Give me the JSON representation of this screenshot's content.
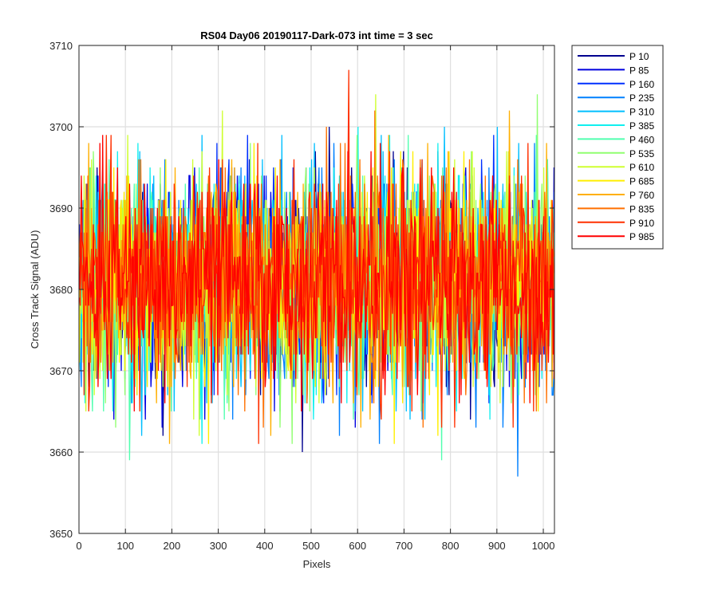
{
  "chart_data": {
    "type": "line",
    "title": "RS04 Day06 20190117-Dark-073 int time = 3 sec",
    "xlabel": "Pixels",
    "ylabel": "Cross Track Signal (ADU)",
    "xlim": [
      0,
      1024
    ],
    "ylim": [
      3650,
      3710
    ],
    "xticks": [
      0,
      100,
      200,
      300,
      400,
      500,
      600,
      700,
      800,
      900,
      1000
    ],
    "yticks": [
      3650,
      3660,
      3670,
      3680,
      3690,
      3700,
      3710
    ],
    "grid": true,
    "legend_placement": "outside-top-right",
    "x": {
      "start": 1,
      "end": 1024
    },
    "noise_model": {
      "mean": 3681,
      "sigma": 6.5,
      "min": 3651,
      "max": 3707
    },
    "series": [
      {
        "name": "P 10",
        "color": "#00008f"
      },
      {
        "name": "P 85",
        "color": "#0000df"
      },
      {
        "name": "P 160",
        "color": "#0030ff"
      },
      {
        "name": "P 235",
        "color": "#0080ff"
      },
      {
        "name": "P 310",
        "color": "#00bfff"
      },
      {
        "name": "P 385",
        "color": "#10efef"
      },
      {
        "name": "P 460",
        "color": "#50ffaf"
      },
      {
        "name": "P 535",
        "color": "#90ff70"
      },
      {
        "name": "P 610",
        "color": "#cfff30"
      },
      {
        "name": "P 685",
        "color": "#ffef00"
      },
      {
        "name": "P 760",
        "color": "#ffaf00"
      },
      {
        "name": "P 835",
        "color": "#ff7000"
      },
      {
        "name": "P 910",
        "color": "#ff3000"
      },
      {
        "name": "P 985",
        "color": "#ff0000"
      }
    ]
  }
}
